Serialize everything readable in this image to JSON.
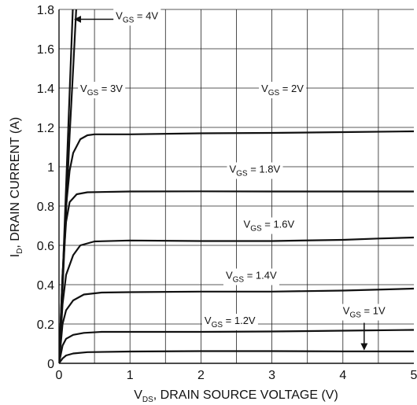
{
  "chart_data": {
    "type": "line",
    "xlabel": {
      "main": "V",
      "sub": "DS",
      "rest": ", DRAIN SOURCE VOLTAGE (V)"
    },
    "ylabel": {
      "main": "I",
      "sub": "D",
      "rest": ", DRAIN CURRENT (A)"
    },
    "xlim": [
      0,
      5
    ],
    "ylim": [
      0,
      1.8
    ],
    "xticks": [
      0,
      1,
      2,
      3,
      4,
      5
    ],
    "xtick_labels": [
      "0",
      "1",
      "2",
      "3",
      "4",
      "5"
    ],
    "yticks": [
      0,
      0.2,
      0.4,
      0.6,
      0.8,
      1,
      1.2,
      1.4,
      1.6,
      1.8
    ],
    "ytick_labels": [
      "0",
      "0.2",
      "0.4",
      "0.6",
      "0.8",
      "1",
      "1.2",
      "1.4",
      "1.6",
      "1.8"
    ],
    "grid": true,
    "series": [
      {
        "name": "VGS = 4V",
        "label": {
          "pre": "V",
          "sub": "GS",
          "post": " = 4V"
        },
        "points": [
          [
            0,
            0
          ],
          [
            0.05,
            0.42
          ],
          [
            0.1,
            0.9
          ],
          [
            0.15,
            1.38
          ],
          [
            0.2,
            1.85
          ]
        ]
      },
      {
        "name": "VGS = 3V",
        "label": {
          "pre": "V",
          "sub": "GS",
          "post": " = 3V"
        },
        "points": [
          [
            0,
            0
          ],
          [
            0.05,
            0.38
          ],
          [
            0.1,
            0.77
          ],
          [
            0.15,
            1.16
          ],
          [
            0.2,
            1.5
          ],
          [
            0.25,
            1.85
          ]
        ]
      },
      {
        "name": "VGS = 2V",
        "label": {
          "pre": "V",
          "sub": "GS",
          "post": " = 2V"
        },
        "points": [
          [
            0,
            0
          ],
          [
            0.05,
            0.45
          ],
          [
            0.1,
            0.8
          ],
          [
            0.15,
            0.98
          ],
          [
            0.2,
            1.07
          ],
          [
            0.3,
            1.14
          ],
          [
            0.4,
            1.16
          ],
          [
            0.5,
            1.165
          ],
          [
            1,
            1.165
          ],
          [
            2,
            1.17
          ],
          [
            3,
            1.172
          ],
          [
            4,
            1.176
          ],
          [
            5,
            1.18
          ]
        ]
      },
      {
        "name": "VGS = 1.8V",
        "label": {
          "pre": "V",
          "sub": "GS",
          "post": " = 1.8V"
        },
        "points": [
          [
            0,
            0
          ],
          [
            0.05,
            0.45
          ],
          [
            0.1,
            0.72
          ],
          [
            0.15,
            0.82
          ],
          [
            0.25,
            0.86
          ],
          [
            0.4,
            0.87
          ],
          [
            1,
            0.874
          ],
          [
            2,
            0.875
          ],
          [
            3,
            0.874
          ],
          [
            4,
            0.874
          ],
          [
            5,
            0.874
          ]
        ]
      },
      {
        "name": "VGS = 1.6V",
        "label": {
          "pre": "V",
          "sub": "GS",
          "post": " = 1.6V"
        },
        "points": [
          [
            0,
            0
          ],
          [
            0.05,
            0.3
          ],
          [
            0.1,
            0.45
          ],
          [
            0.2,
            0.55
          ],
          [
            0.3,
            0.6
          ],
          [
            0.5,
            0.62
          ],
          [
            1,
            0.625
          ],
          [
            2,
            0.622
          ],
          [
            3,
            0.622
          ],
          [
            4,
            0.628
          ],
          [
            4.5,
            0.635
          ],
          [
            5,
            0.64
          ]
        ]
      },
      {
        "name": "VGS = 1.4V",
        "label": {
          "pre": "V",
          "sub": "GS",
          "post": " = 1.4V"
        },
        "points": [
          [
            0,
            0
          ],
          [
            0.05,
            0.2
          ],
          [
            0.1,
            0.27
          ],
          [
            0.2,
            0.32
          ],
          [
            0.35,
            0.35
          ],
          [
            0.6,
            0.36
          ],
          [
            1,
            0.362
          ],
          [
            2,
            0.365
          ],
          [
            3,
            0.365
          ],
          [
            4,
            0.37
          ],
          [
            5,
            0.38
          ]
        ]
      },
      {
        "name": "VGS = 1.2V",
        "label": {
          "pre": "V",
          "sub": "GS",
          "post": " = 1.2V"
        },
        "points": [
          [
            0,
            0
          ],
          [
            0.05,
            0.09
          ],
          [
            0.1,
            0.125
          ],
          [
            0.2,
            0.145
          ],
          [
            0.35,
            0.155
          ],
          [
            0.6,
            0.16
          ],
          [
            1,
            0.16
          ],
          [
            2,
            0.16
          ],
          [
            3,
            0.162
          ],
          [
            4,
            0.166
          ],
          [
            5,
            0.17
          ]
        ]
      },
      {
        "name": "VGS = 1V",
        "label": {
          "pre": "V",
          "sub": "GS",
          "post": " = 1V"
        },
        "points": [
          [
            0,
            0
          ],
          [
            0.05,
            0.025
          ],
          [
            0.1,
            0.04
          ],
          [
            0.2,
            0.05
          ],
          [
            0.4,
            0.057
          ],
          [
            1,
            0.06
          ],
          [
            2,
            0.062
          ],
          [
            3,
            0.062
          ],
          [
            4,
            0.061
          ],
          [
            5,
            0.061
          ]
        ]
      }
    ],
    "annotations": [
      {
        "series": "VGS = 4V",
        "pre": "V",
        "sub": "GS",
        "post": " = 4V",
        "anchor": [
          0.8,
          1.75
        ],
        "arrow": "left",
        "arrow_to": [
          0.2,
          1.75
        ]
      },
      {
        "series": "VGS = 3V",
        "pre": "V",
        "sub": "GS",
        "post": " = 3V",
        "anchor": [
          0.3,
          1.38
        ],
        "arrow": "none"
      },
      {
        "series": "VGS = 2V",
        "pre": "V",
        "sub": "GS",
        "post": " = 2V",
        "anchor": [
          2.85,
          1.38
        ],
        "arrow": "none"
      },
      {
        "series": "VGS = 1.8V",
        "pre": "V",
        "sub": "GS",
        "post": " = 1.8V",
        "anchor": [
          2.4,
          0.97
        ],
        "arrow": "none"
      },
      {
        "series": "VGS = 1.6V",
        "pre": "V",
        "sub": "GS",
        "post": " = 1.6V",
        "anchor": [
          2.6,
          0.69
        ],
        "arrow": "none"
      },
      {
        "series": "VGS = 1.4V",
        "pre": "V",
        "sub": "GS",
        "post": " = 1.4V",
        "anchor": [
          2.35,
          0.43
        ],
        "arrow": "none"
      },
      {
        "series": "VGS = 1.2V",
        "pre": "V",
        "sub": "GS",
        "post": " = 1.2V",
        "anchor": [
          2.05,
          0.2
        ],
        "arrow": "none"
      },
      {
        "series": "VGS = 1V",
        "pre": "V",
        "sub": "GS",
        "post": " = 1V",
        "anchor": [
          4.0,
          0.25
        ],
        "arrow": "down",
        "arrow_to": [
          4.3,
          0.07
        ]
      }
    ]
  }
}
